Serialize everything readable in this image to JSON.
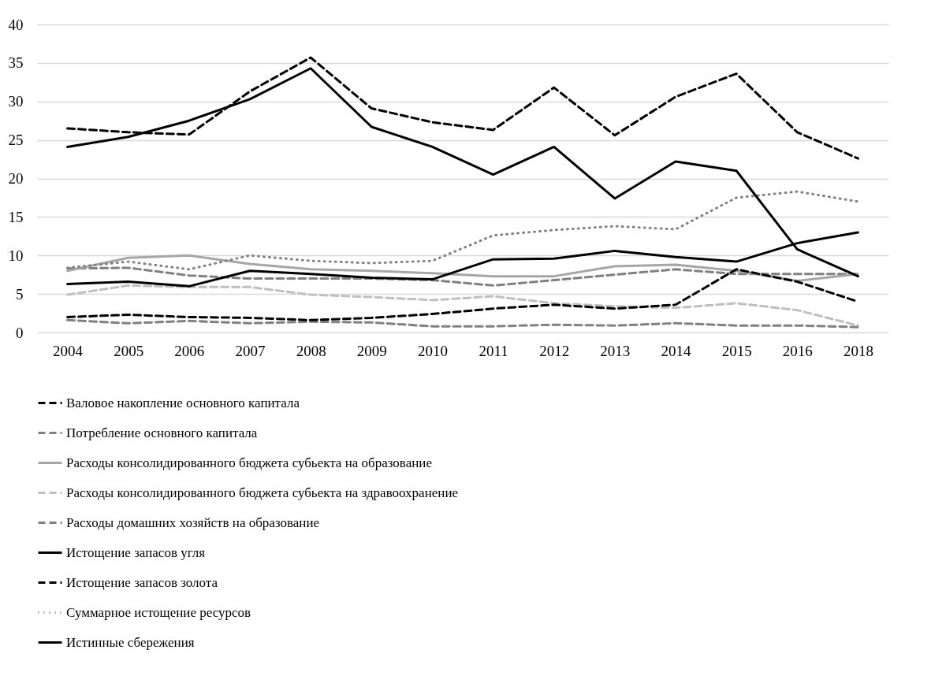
{
  "chart_data": {
    "type": "line",
    "categories": [
      "2004",
      "2005",
      "2006",
      "2007",
      "2008",
      "2009",
      "2010",
      "2011",
      "2012",
      "2013",
      "2014",
      "2015",
      "2016",
      "2018"
    ],
    "ylim": [
      0,
      40
    ],
    "yticks": [
      0,
      5,
      10,
      15,
      20,
      25,
      30,
      35,
      40
    ],
    "grid": "y",
    "legend": "bottom",
    "marker": "none",
    "series": [
      {
        "name": "Валовое накопление основного капитала",
        "color": "#000000",
        "line_style": "dashed",
        "values": [
          26.5,
          26,
          25.7,
          31.3,
          35.7,
          29.1,
          27.3,
          26.3,
          31.8,
          25.6,
          30.6,
          33.6,
          26,
          22.6
        ]
      },
      {
        "name": "Потребление основного капитала",
        "color": "#808080",
        "line_style": "dashed",
        "values": [
          8.3,
          8.4,
          7.4,
          7.0,
          7.0,
          7.0,
          6.8,
          6.1,
          6.8,
          7.5,
          8.2,
          7.6,
          7.6,
          7.6
        ]
      },
      {
        "name": "Расходы консолидированного бюджета субьекта на образование",
        "color": "#a6a6a6",
        "line_style": "solid",
        "values": [
          8.0,
          9.7,
          10.0,
          8.9,
          8.2,
          8.0,
          7.7,
          7.3,
          7.3,
          8.6,
          8.8,
          8.0,
          6.7,
          7.6
        ]
      },
      {
        "name": "Расходы консолидированного бюджета субьекта на здравоохранение",
        "color": "#bfbfbf",
        "line_style": "dashed",
        "values": [
          4.9,
          6.1,
          5.9,
          5.9,
          4.9,
          4.6,
          4.2,
          4.7,
          3.8,
          3.4,
          3.2,
          3.8,
          2.9,
          0.9
        ]
      },
      {
        "name": "Расходы домашних хозяйств на образование",
        "color": "#808080",
        "line_style": "dashed",
        "values": [
          1.6,
          1.2,
          1.5,
          1.2,
          1.4,
          1.3,
          0.8,
          0.8,
          1.0,
          0.9,
          1.2,
          0.9,
          0.9,
          0.7
        ]
      },
      {
        "name": "Истощение запасов угля",
        "color": "#000000",
        "line_style": "solid",
        "values": [
          6.3,
          6.6,
          6.0,
          8.0,
          7.6,
          7.1,
          6.9,
          9.5,
          9.6,
          10.6,
          9.8,
          9.2,
          11.6,
          13.0
        ]
      },
      {
        "name": "Истощение запасов золота",
        "color": "#000000",
        "line_style": "dashed",
        "values": [
          2.0,
          2.3,
          2.0,
          1.9,
          1.6,
          1.9,
          2.4,
          3.1,
          3.6,
          3.1,
          3.6,
          8.2,
          6.6,
          4.0
        ]
      },
      {
        "name": "Суммарное истощение ресурсов",
        "color": "#808080",
        "line_style": "dotted",
        "values": [
          8.4,
          9.2,
          8.2,
          10.0,
          9.3,
          9.0,
          9.3,
          12.6,
          13.3,
          13.8,
          13.4,
          17.5,
          18.3,
          17.0
        ]
      },
      {
        "name": "Истинные сбережения",
        "color": "#000000",
        "line_style": "solid",
        "values": [
          24.1,
          25.4,
          27.5,
          30.3,
          34.3,
          26.7,
          24.1,
          20.5,
          24.1,
          17.4,
          22.2,
          21.0,
          10.8,
          7.3
        ]
      }
    ]
  }
}
